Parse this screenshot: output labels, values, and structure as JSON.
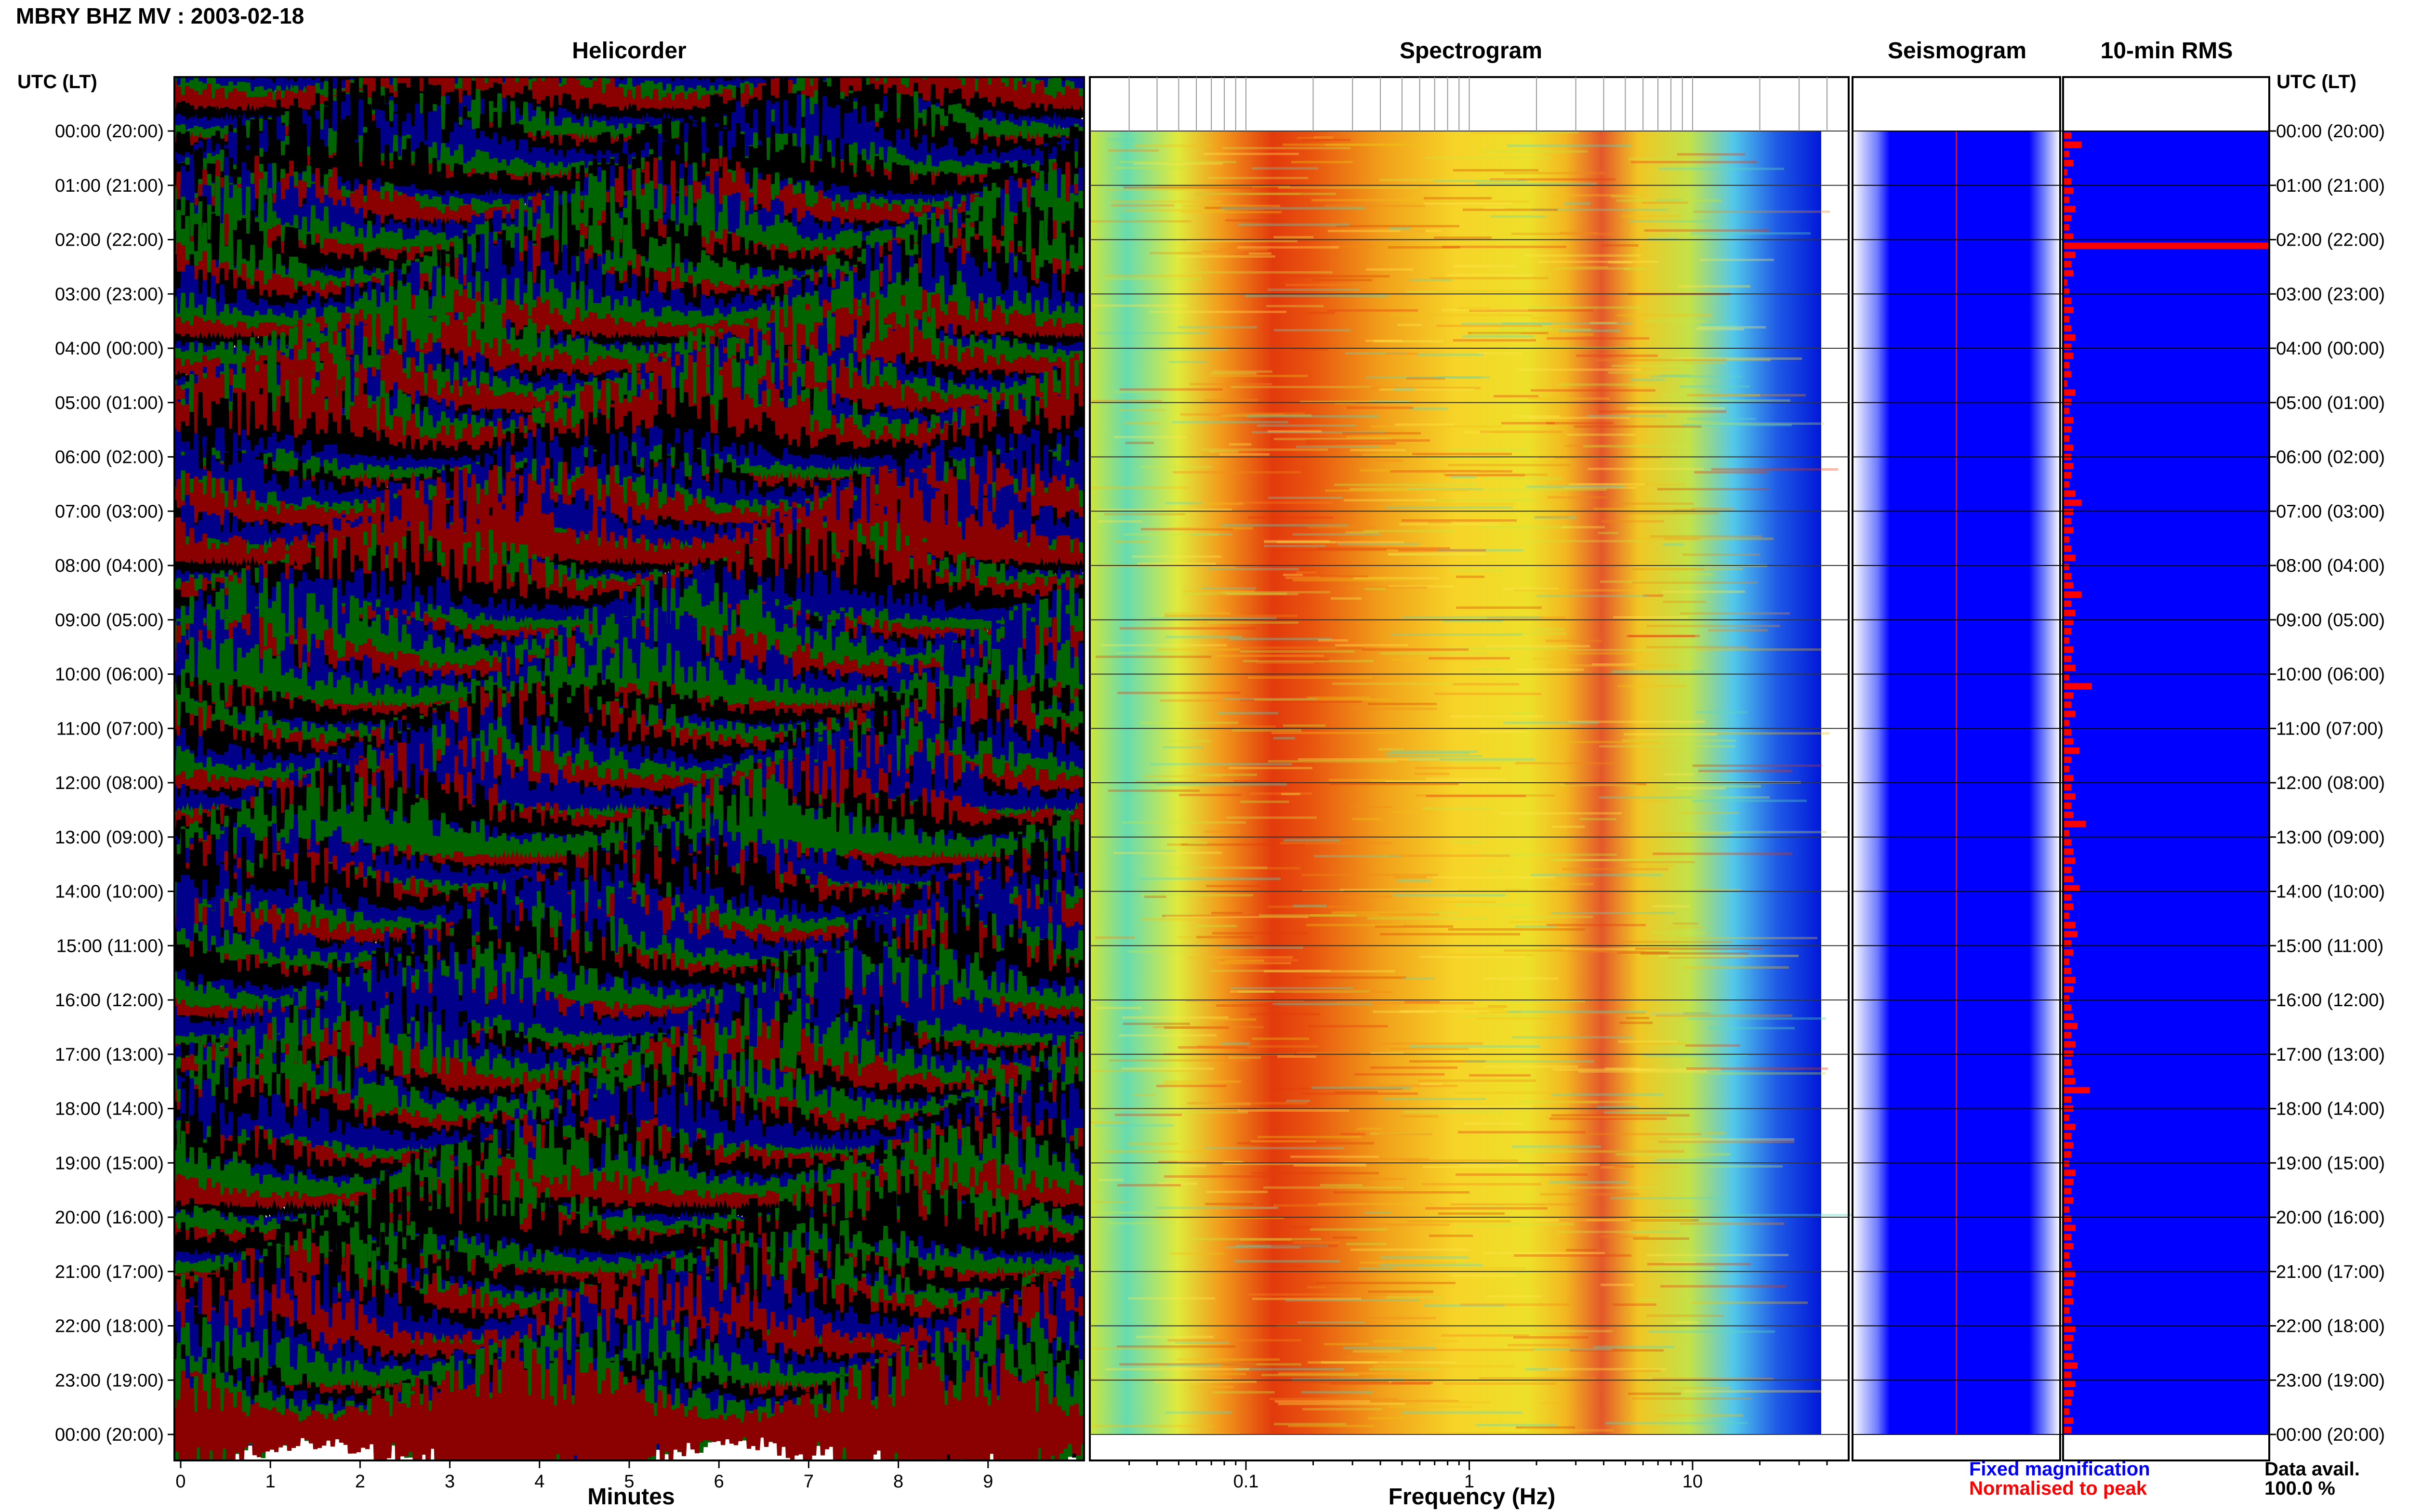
{
  "title": "MBRY BHZ MV : 2003-02-18",
  "panels": {
    "helicorder": "Helicorder",
    "spectrogram": "Spectrogram",
    "seismogram": "Seismogram",
    "rms": "10-min RMS"
  },
  "utc_header_left": "UTC (LT)",
  "utc_header_right": "UTC (LT)",
  "x_axes": {
    "helicorder_label": "Minutes",
    "spectrogram_label": "Frequency (Hz)"
  },
  "legend": {
    "fixed": "Fixed magnification",
    "normalised": "Normalised to peak",
    "data_avail_label": "Data avail.",
    "data_avail_value": "100.0 %"
  },
  "colors": {
    "helicorder_traces": [
      "#000000",
      "#00008b",
      "#006400",
      "#8b0000"
    ],
    "fixed_magnification": "#0000ff",
    "normalised_to_peak": "#ff0000"
  },
  "chart_data": [
    {
      "type": "line",
      "panel": "helicorder",
      "title": "Helicorder",
      "xlabel": "Minutes",
      "ylabel": "UTC (LT)",
      "x_ticks": [
        0,
        1,
        2,
        3,
        4,
        5,
        6,
        7,
        8,
        9
      ],
      "xlim": [
        0,
        10
      ],
      "y_tick_labels": [
        "00:00 (20:00)",
        "01:00 (21:00)",
        "02:00 (22:00)",
        "03:00 (23:00)",
        "04:00 (00:00)",
        "05:00 (01:00)",
        "06:00 (02:00)",
        "07:00 (03:00)",
        "08:00 (04:00)",
        "09:00 (05:00)",
        "10:00 (06:00)",
        "11:00 (07:00)",
        "12:00 (08:00)",
        "13:00 (09:00)",
        "14:00 (10:00)",
        "15:00 (11:00)",
        "16:00 (12:00)",
        "17:00 (13:00)",
        "18:00 (14:00)",
        "19:00 (15:00)",
        "20:00 (16:00)",
        "21:00 (17:00)",
        "22:00 (18:00)",
        "23:00 (19:00)",
        "00:00 (20:00)"
      ]
    },
    {
      "type": "heatmap",
      "panel": "spectrogram",
      "title": "Spectrogram",
      "xlabel": "Frequency (Hz)",
      "x_scale": "log",
      "xlim": [
        0.02,
        50
      ],
      "x_tick_labels": [
        "0.1",
        "1",
        "10"
      ],
      "colormap": "jet",
      "dominant_band_hz": [
        0.15,
        0.4
      ],
      "secondary_band_hz": [
        2,
        5
      ]
    },
    {
      "type": "line",
      "panel": "seismogram",
      "title": "Seismogram",
      "series": [
        {
          "name": "Fixed magnification",
          "color": "#0000ff"
        },
        {
          "name": "Normalised to peak",
          "color": "#ff0000"
        }
      ]
    },
    {
      "type": "bar",
      "panel": "rms",
      "title": "10-min RMS",
      "orientation": "horizontal",
      "bins_per_hour": 6,
      "values": [
        0.04,
        0.09,
        0.03,
        0.05,
        0.02,
        0.04,
        0.05,
        0.03,
        0.06,
        0.04,
        0.03,
        0.05,
        1.0,
        0.06,
        0.04,
        0.05,
        0.02,
        0.03,
        0.04,
        0.05,
        0.03,
        0.04,
        0.06,
        0.04,
        0.05,
        0.03,
        0.04,
        0.02,
        0.06,
        0.04,
        0.03,
        0.05,
        0.04,
        0.03,
        0.05,
        0.04,
        0.05,
        0.04,
        0.03,
        0.06,
        0.09,
        0.05,
        0.04,
        0.05,
        0.03,
        0.04,
        0.06,
        0.03,
        0.04,
        0.05,
        0.09,
        0.04,
        0.06,
        0.05,
        0.04,
        0.03,
        0.05,
        0.04,
        0.06,
        0.03,
        0.14,
        0.05,
        0.04,
        0.06,
        0.03,
        0.04,
        0.05,
        0.08,
        0.04,
        0.03,
        0.05,
        0.04,
        0.06,
        0.04,
        0.05,
        0.11,
        0.03,
        0.04,
        0.05,
        0.06,
        0.04,
        0.05,
        0.08,
        0.04,
        0.05,
        0.03,
        0.06,
        0.07,
        0.04,
        0.05,
        0.03,
        0.04,
        0.06,
        0.05,
        0.03,
        0.04,
        0.05,
        0.07,
        0.04,
        0.06,
        0.05,
        0.04,
        0.05,
        0.06,
        0.13,
        0.04,
        0.05,
        0.03,
        0.06,
        0.04,
        0.05,
        0.04,
        0.03,
        0.06,
        0.05,
        0.04,
        0.05,
        0.03,
        0.04,
        0.06,
        0.04,
        0.05,
        0.03,
        0.04,
        0.06,
        0.05,
        0.04,
        0.05,
        0.03,
        0.04,
        0.06,
        0.05,
        0.04,
        0.05,
        0.07,
        0.04,
        0.06,
        0.05,
        0.04,
        0.03,
        0.05,
        0.04
      ]
    }
  ]
}
